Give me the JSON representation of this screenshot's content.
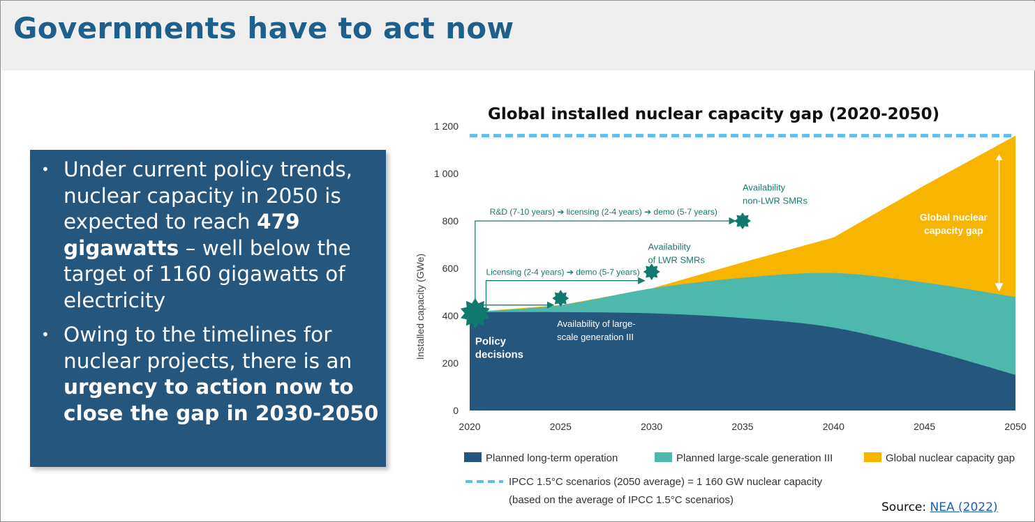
{
  "header": {
    "title": "Governments have to act now"
  },
  "bullets": {
    "b1": {
      "pre": "Under current policy trends, nuclear capacity in 2050 is expected to reach ",
      "bold": "479 gigawatts",
      "post": " – well below the target of 1160 gigawatts of electricity"
    },
    "b2": {
      "pre": "Owing to the timelines for nuclear projects, there is an ",
      "bold": "urgency to action now to close the gap in 2030-2050"
    }
  },
  "source": {
    "label": "Source: ",
    "link_text": "NEA (2022)"
  },
  "colors": {
    "dark_blue": "#25567d",
    "teal": "#4db8ab",
    "gold": "#f7b500",
    "dashed": "#5bc0eb",
    "star": "#0f7a6d",
    "annotation": "#1b7a6e"
  },
  "chart_data": {
    "type": "area",
    "title": "Global installed nuclear capacity gap (2020-2050)",
    "ylabel": "Installed capacity (GWe)",
    "xlabel": "",
    "ylim": [
      0,
      1200
    ],
    "xlim": [
      2020,
      2050
    ],
    "yticks": [
      0,
      200,
      400,
      600,
      800,
      1000,
      1200
    ],
    "ytick_labels": [
      "0",
      "200",
      "400",
      "600",
      "800",
      "1 000",
      "1 200"
    ],
    "xticks": [
      2020,
      2025,
      2030,
      2035,
      2040,
      2045,
      2050
    ],
    "x": [
      2020,
      2025,
      2030,
      2035,
      2040,
      2045,
      2050
    ],
    "series": [
      {
        "name": "Planned long-term operation",
        "values": [
          415,
          415,
          410,
          390,
          350,
          260,
          150
        ]
      },
      {
        "name": "Planned large-scale generation III",
        "values": [
          415,
          445,
          515,
          560,
          580,
          540,
          479
        ]
      },
      {
        "name": "Global nuclear capacity gap",
        "values": [
          415,
          445,
          515,
          625,
          730,
          950,
          1160
        ]
      }
    ],
    "target": {
      "name": "IPCC 1.5°C scenarios (2050 average) = 1 160 GW nuclear capacity",
      "sub": "(based on the average of IPCC 1.5°C scenarios)",
      "value": 1160
    },
    "milestones": [
      {
        "x": 2020.3,
        "y": 410,
        "label": "Policy decisions"
      },
      {
        "x": 2025,
        "y": 450,
        "label": "Availability of large-scale generation III"
      },
      {
        "x": 2030,
        "y": 550,
        "label": "Availability of LWR SMRs"
      },
      {
        "x": 2035,
        "y": 800,
        "label": "Availability non-LWR SMRs"
      }
    ],
    "annotations": [
      {
        "text": "R&D (7-10 years)  ➔ licensing (2-4 years) ➔ demo (5-7 years)"
      },
      {
        "text": "Licensing (2-4 years) ➔ demo (5-7 years)"
      },
      {
        "text": "Global nuclear capacity gap"
      }
    ],
    "legend": [
      "Planned long-term operation",
      "Planned large-scale generation III",
      "Global nuclear capacity gap"
    ]
  }
}
